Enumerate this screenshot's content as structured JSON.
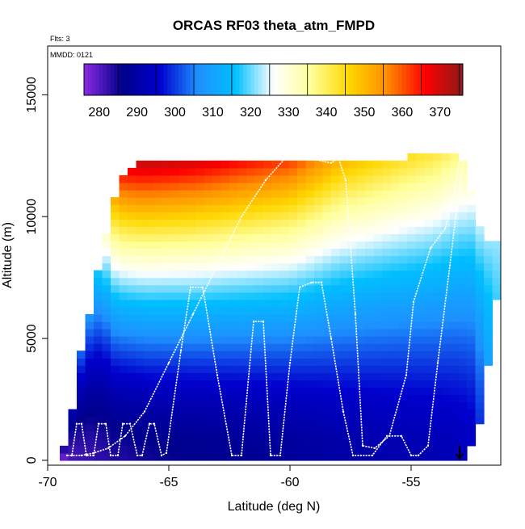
{
  "chart_data": {
    "type": "heatmap",
    "title": "ORCAS RF03 theta_atm_FMPD",
    "annotations": {
      "flights": "Flts: 3",
      "date": "MMDD: 0121"
    },
    "xlabel": "Latitude (deg N)",
    "ylabel": "Altitude (m)",
    "xlim": [
      -70,
      -51.3
    ],
    "ylim": [
      -200,
      17000
    ],
    "x_ticks": [
      -70,
      -65,
      -60,
      -55
    ],
    "x_tick_labels": [
      "-70",
      "-65",
      "-60",
      "-55"
    ],
    "y_ticks": [
      0,
      5000,
      10000,
      15000
    ],
    "y_tick_labels": [
      "0",
      "5000",
      "10000",
      "15000"
    ],
    "grid": false,
    "colorbar": {
      "placement": "top-inside",
      "range": [
        276,
        376
      ],
      "ticks": [
        280,
        290,
        300,
        310,
        320,
        330,
        340,
        350,
        360,
        370
      ],
      "tick_labels": [
        "280",
        "290",
        "300",
        "310",
        "320",
        "330",
        "340",
        "350",
        "360",
        "370"
      ],
      "colors": [
        "#8a2be2",
        "#00008b",
        "#0000cd",
        "#1e90ff",
        "#00bfff",
        "#ffffff",
        "#ffff99",
        "#ffd700",
        "#ff8c00",
        "#ff0000",
        "#8b1a1a"
      ]
    },
    "field": {
      "variable": "theta",
      "columns": [
        {
          "lat": -69.2,
          "alt_min": 0,
          "alt_max": 500,
          "theta_surface": 278,
          "theta_top": 284
        },
        {
          "lat": -69.0,
          "alt_min": 0,
          "alt_max": 2000,
          "theta_surface": 281,
          "theta_top": 292
        },
        {
          "lat": -68.8,
          "alt_min": 0,
          "alt_max": 3500,
          "theta_surface": 281,
          "theta_top": 299
        },
        {
          "lat": -68.5,
          "alt_min": 0,
          "alt_max": 5000,
          "theta_surface": 282,
          "theta_top": 305
        },
        {
          "lat": -68.2,
          "alt_min": 0,
          "alt_max": 6500,
          "theta_surface": 282,
          "theta_top": 310
        },
        {
          "lat": -67.8,
          "alt_min": 0,
          "alt_max": 8500,
          "theta_surface": 283,
          "theta_top": 322
        },
        {
          "lat": -67.5,
          "alt_min": 0,
          "alt_max": 9500,
          "theta_surface": 283,
          "theta_top": 335
        },
        {
          "lat": -67.2,
          "alt_min": 0,
          "alt_max": 11000,
          "theta_surface": 284,
          "theta_top": 355
        },
        {
          "lat": -66.8,
          "alt_min": 0,
          "alt_max": 12000,
          "theta_surface": 284,
          "theta_top": 368
        },
        {
          "lat": -66.0,
          "alt_min": 0,
          "alt_max": 12300,
          "theta_surface": 285,
          "theta_top": 372
        },
        {
          "lat": -64.0,
          "alt_min": 0,
          "alt_max": 12300,
          "theta_surface": 286,
          "theta_top": 370
        },
        {
          "lat": -62.0,
          "alt_min": 0,
          "alt_max": 12300,
          "theta_surface": 287,
          "theta_top": 366
        },
        {
          "lat": -60.0,
          "alt_min": 0,
          "alt_max": 12400,
          "theta_surface": 288,
          "theta_top": 363
        },
        {
          "lat": -58.0,
          "alt_min": 0,
          "alt_max": 12200,
          "theta_surface": 290,
          "theta_top": 350
        },
        {
          "lat": -56.0,
          "alt_min": 0,
          "alt_max": 12300,
          "theta_surface": 291,
          "theta_top": 345
        },
        {
          "lat": -54.0,
          "alt_min": 0,
          "alt_max": 12600,
          "theta_surface": 292,
          "theta_top": 342
        },
        {
          "lat": -53.0,
          "alt_min": 0,
          "alt_max": 12700,
          "theta_surface": 293,
          "theta_top": 338
        },
        {
          "lat": -52.5,
          "alt_min": 500,
          "alt_max": 11000,
          "theta_surface": 294,
          "theta_top": 328
        },
        {
          "lat": -52.0,
          "alt_min": 2000,
          "alt_max": 9000,
          "theta_surface": 300,
          "theta_top": 322
        },
        {
          "lat": -51.6,
          "alt_min": 6500,
          "alt_max": 9000,
          "theta_surface": 312,
          "theta_top": 322
        }
      ]
    },
    "flight_track": {
      "lat": [
        -69.2,
        -69.0,
        -68.8,
        -68.6,
        -68.4,
        -68.1,
        -67.9,
        -67.6,
        -67.4,
        -67.1,
        -66.9,
        -66.6,
        -66.3,
        -66.1,
        -65.8,
        -65.6,
        -65.3,
        -65.1,
        -64.5,
        -64.1,
        -63.6,
        -63.0,
        -62.4,
        -62.0,
        -61.5,
        -61.1,
        -60.8,
        -60.4,
        -60.0,
        -59.6,
        -59.1,
        -58.7,
        -58.3,
        -57.8,
        -57.4,
        -56.6,
        -56.0,
        -55.4,
        -55.0,
        -54.7,
        -54.3,
        -53.9,
        -53.4,
        -53.1,
        -52.8,
        -53.0,
        -53.2,
        -53.6,
        -54.2,
        -54.9,
        -55.2,
        -55.9,
        -56.5,
        -57.0,
        -57.3,
        -57.7,
        -58.0,
        -58.3,
        -59.2,
        -60.1,
        -61.0,
        -62.0,
        -63.0,
        -64.0,
        -65.0,
        -66.0,
        -66.8,
        -67.5,
        -68.1,
        -68.6,
        -69.0
      ],
      "alt": [
        200,
        200,
        1500,
        1500,
        200,
        200,
        1500,
        1500,
        200,
        200,
        1500,
        1500,
        200,
        200,
        1500,
        1500,
        200,
        300,
        4500,
        7100,
        7100,
        3500,
        200,
        200,
        5700,
        5700,
        200,
        200,
        4000,
        7100,
        7300,
        7300,
        5000,
        2000,
        200,
        200,
        1000,
        1000,
        200,
        200,
        600,
        4000,
        8000,
        10500,
        12600,
        12300,
        11000,
        9500,
        8700,
        6500,
        3500,
        1000,
        500,
        600,
        6000,
        11500,
        12400,
        12200,
        12400,
        12500,
        11500,
        10000,
        8000,
        6000,
        4000,
        2000,
        1000,
        500,
        300,
        200,
        200
      ]
    }
  }
}
